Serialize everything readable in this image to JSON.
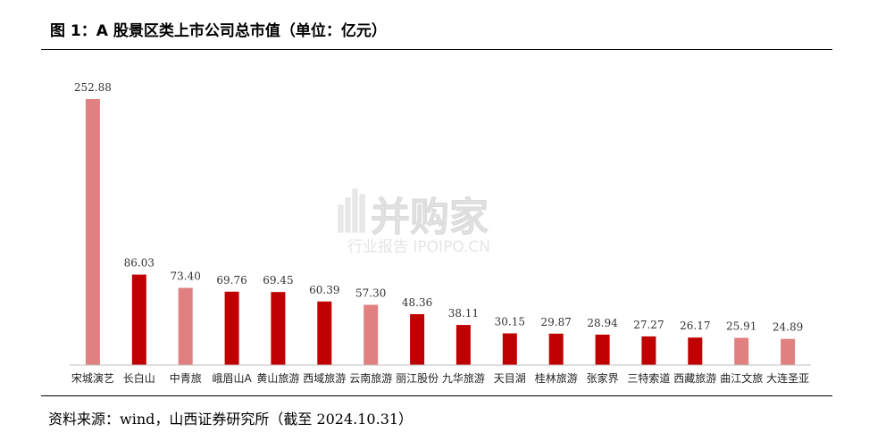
{
  "figure": {
    "title": "图 1：A 股景区类上市公司总市值（单位：亿元）",
    "source": "资料来源：wind，山西证券研究所（截至 2024.10.31）"
  },
  "watermark": {
    "main_text": "并购家",
    "sub_text": "行业报告 IPOIPO.CN"
  },
  "colors": {
    "dark_red": "#C00000",
    "light_red": "#E08080",
    "axis": "#bfbfbf"
  },
  "chart_data": {
    "type": "bar",
    "title": "",
    "xlabel": "",
    "ylabel": "",
    "ylim": [
      0,
      270
    ],
    "grid": false,
    "legend": "none",
    "categories": [
      "宋城演艺",
      "长白山",
      "中青旅",
      "峨眉山A",
      "黄山旅游",
      "西域旅游",
      "云南旅游",
      "丽江股份",
      "九华旅游",
      "天目湖",
      "桂林旅游",
      "张家界",
      "三特索道",
      "西藏旅游",
      "曲江文旅",
      "大连圣亚"
    ],
    "values": [
      252.88,
      86.03,
      73.4,
      69.76,
      69.45,
      60.39,
      57.3,
      48.36,
      38.11,
      30.15,
      29.87,
      28.94,
      27.27,
      26.17,
      25.91,
      24.89
    ],
    "value_labels": [
      "252.88",
      "86.03",
      "73.40",
      "69.76",
      "69.45",
      "60.39",
      "57.30",
      "48.36",
      "38.11",
      "30.15",
      "29.87",
      "28.94",
      "27.27",
      "26.17",
      "25.91",
      "24.89"
    ],
    "bar_colors": [
      "light",
      "dark",
      "light",
      "dark",
      "dark",
      "dark",
      "light",
      "dark",
      "dark",
      "dark",
      "dark",
      "dark",
      "dark",
      "dark",
      "light",
      "light"
    ]
  }
}
